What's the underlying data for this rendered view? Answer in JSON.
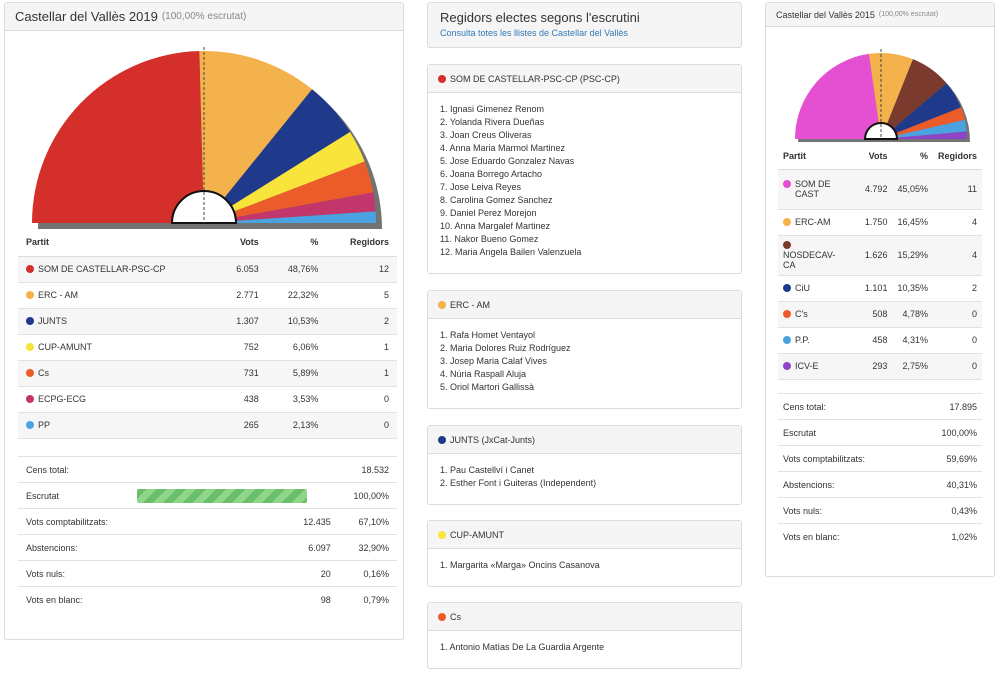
{
  "left": {
    "title": "Castellar del Vallès 2019",
    "subtitle": "(100,00% escrutat)",
    "headers": [
      "Partit",
      "Vots",
      "%",
      "Regidors"
    ],
    "parties": [
      {
        "name": "SOM DE CASTELLAR-PSC-CP",
        "votes": "6.053",
        "pct": "48,76%",
        "seats": "12",
        "color": "#d42f2a",
        "value": 48.76
      },
      {
        "name": "ERC - AM",
        "votes": "2.771",
        "pct": "22,32%",
        "seats": "5",
        "color": "#f4b24c",
        "value": 22.32
      },
      {
        "name": "JUNTS",
        "votes": "1.307",
        "pct": "10,53%",
        "seats": "2",
        "color": "#1f3a8a",
        "value": 10.53
      },
      {
        "name": "CUP-AMUNT",
        "votes": "752",
        "pct": "6,06%",
        "seats": "1",
        "color": "#f8e43a",
        "value": 6.06
      },
      {
        "name": "Cs",
        "votes": "731",
        "pct": "5,89%",
        "seats": "1",
        "color": "#ec5c2a",
        "value": 5.89
      },
      {
        "name": "ECPG-ECG",
        "votes": "438",
        "pct": "3,53%",
        "seats": "0",
        "color": "#c2366b",
        "value": 3.53
      },
      {
        "name": "PP",
        "votes": "265",
        "pct": "2,13%",
        "seats": "0",
        "color": "#4aa3e0",
        "value": 2.13
      }
    ],
    "stats": {
      "cens_label": "Cens total:",
      "cens_value": "18.532",
      "escrutat_label": "Escrutat",
      "escrutat_value": "100,00%",
      "escrutat_fraction": 1.0,
      "rows": [
        {
          "label": "Vots comptabilitzats:",
          "value": "12.435",
          "pct": "67,10%"
        },
        {
          "label": "Abstencions:",
          "value": "6.097",
          "pct": "32,90%"
        },
        {
          "label": "Vots nuls:",
          "value": "20",
          "pct": "0,16%"
        },
        {
          "label": "Vots en blanc:",
          "value": "98",
          "pct": "0,79%"
        }
      ]
    }
  },
  "middle": {
    "title": "Regidors electes segons l'escrutini",
    "link": "Consulta totes les llistes de Castellar del Vallès",
    "lists": [
      {
        "party": "SOM DE CASTELLAR-PSC-CP (PSC-CP)",
        "color": "#d42f2a",
        "members": [
          "1. Ignasi Gimenez Renom",
          "2. Yolanda Rivera Dueñas",
          "3. Joan Creus Oliveras",
          "4. Anna Maria Marmol Martinez",
          "5. Jose Eduardo Gonzalez Navas",
          "6. Joana Borrego Artacho",
          "7. Jose Leiva Reyes",
          "8. Carolina Gomez Sanchez",
          "9. Daniel Perez Morejon",
          "10. Anna Margalef Martinez",
          "11. Nakor Bueno Gomez",
          "12. Maria Angela Bailen Valenzuela"
        ]
      },
      {
        "party": "ERC - AM",
        "color": "#f4b24c",
        "members": [
          "1. Rafa Homet Ventayol",
          "2. Maria Dolores Ruiz Rodríguez",
          "3. Josep Maria Calaf Vives",
          "4. Núria Raspall Aluja",
          "5. Oriol Martori Gallissà"
        ]
      },
      {
        "party": "JUNTS (JxCat-Junts)",
        "color": "#1f3a8a",
        "members": [
          "1. Pau Castellví i Canet",
          "2. Esther Font i Guiteras (Independent)"
        ]
      },
      {
        "party": "CUP-AMUNT",
        "color": "#f8e43a",
        "members": [
          "1. Margarita «Marga» Oncins Casanova"
        ]
      },
      {
        "party": "Cs",
        "color": "#ec5c2a",
        "members": [
          "1. Antonio Matías De La Guardia Argente"
        ]
      }
    ]
  },
  "right": {
    "title": "Castellar del Vallès 2015",
    "subtitle": "(100,00% escrutat)",
    "headers": [
      "Partit",
      "Vots",
      "%",
      "Regidors"
    ],
    "parties": [
      {
        "name": "SOM DE CAST",
        "votes": "4.792",
        "pct": "45,05%",
        "seats": "11",
        "color": "#e54fd1",
        "value": 45.05
      },
      {
        "name": "ERC-AM",
        "votes": "1.750",
        "pct": "16,45%",
        "seats": "4",
        "color": "#f4b24c",
        "value": 16.45
      },
      {
        "name": "NOSDECAV-CA",
        "votes": "1.626",
        "pct": "15,29%",
        "seats": "4",
        "color": "#7a3b2e",
        "value": 15.29
      },
      {
        "name": "CiU",
        "votes": "1.101",
        "pct": "10,35%",
        "seats": "2",
        "color": "#1f3a8a",
        "value": 10.35
      },
      {
        "name": "C's",
        "votes": "508",
        "pct": "4,78%",
        "seats": "0",
        "color": "#ec5c2a",
        "value": 4.78
      },
      {
        "name": "P.P.",
        "votes": "458",
        "pct": "4,31%",
        "seats": "0",
        "color": "#4aa3e0",
        "value": 4.31
      },
      {
        "name": "ICV-E",
        "votes": "293",
        "pct": "2,75%",
        "seats": "0",
        "color": "#8e44c7",
        "value": 2.75
      }
    ],
    "stats": [
      {
        "label": "Cens total:",
        "value": "17.895"
      },
      {
        "label": "Escrutat",
        "value": "100,00%"
      },
      {
        "label": "Vots comptabilitzats:",
        "value": "59,69%"
      },
      {
        "label": "Abstencions:",
        "value": "40,31%"
      },
      {
        "label": "Vots nuls:",
        "value": "0,43%"
      },
      {
        "label": "Vots en blanc:",
        "value": "1,02%"
      }
    ]
  }
}
